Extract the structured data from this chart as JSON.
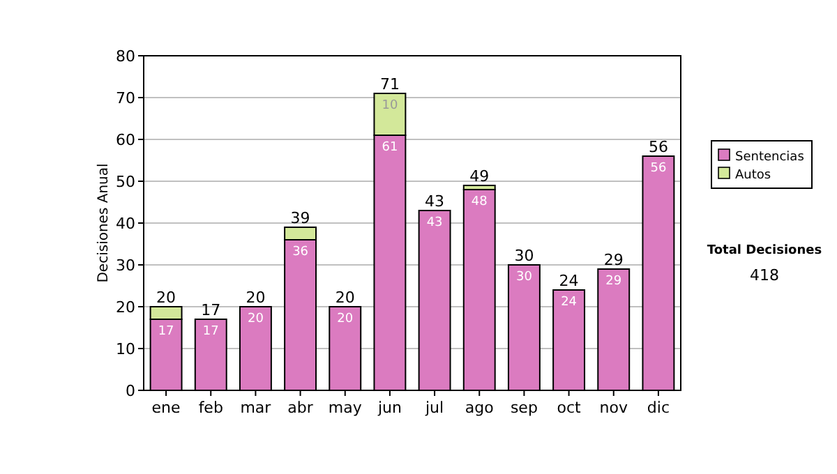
{
  "chart_data": {
    "type": "bar",
    "stacked": true,
    "ylabel": "Decisiones Anual",
    "categories": [
      "ene",
      "feb",
      "mar",
      "abr",
      "may",
      "jun",
      "jul",
      "ago",
      "sep",
      "oct",
      "nov",
      "dic"
    ],
    "series": [
      {
        "name": "Sentencias",
        "color": "#db7bc0",
        "values": [
          17,
          17,
          20,
          36,
          20,
          61,
          43,
          48,
          30,
          24,
          29,
          56
        ],
        "value_labels": [
          "17",
          "17",
          "20",
          "36",
          "20",
          "61",
          "43",
          "48",
          "30",
          "24",
          "29",
          "56"
        ]
      },
      {
        "name": "Autos",
        "color": "#d3e89a",
        "values": [
          3,
          0,
          0,
          3,
          0,
          10,
          0,
          1,
          0,
          0,
          0,
          0
        ],
        "value_labels": [
          null,
          null,
          null,
          null,
          null,
          "10",
          null,
          null,
          null,
          null,
          null,
          null
        ]
      }
    ],
    "totals": [
      "20",
      "17",
      "20",
      "39",
      "20",
      "71",
      "43",
      "49",
      "30",
      "24",
      "29",
      "56"
    ],
    "ylim": [
      0,
      80
    ],
    "yticks": [
      0,
      10,
      20,
      30,
      40,
      50,
      60,
      70,
      80
    ],
    "grid": "y",
    "legend": "right",
    "annotations": [
      "Total Decisiones",
      "418"
    ]
  }
}
